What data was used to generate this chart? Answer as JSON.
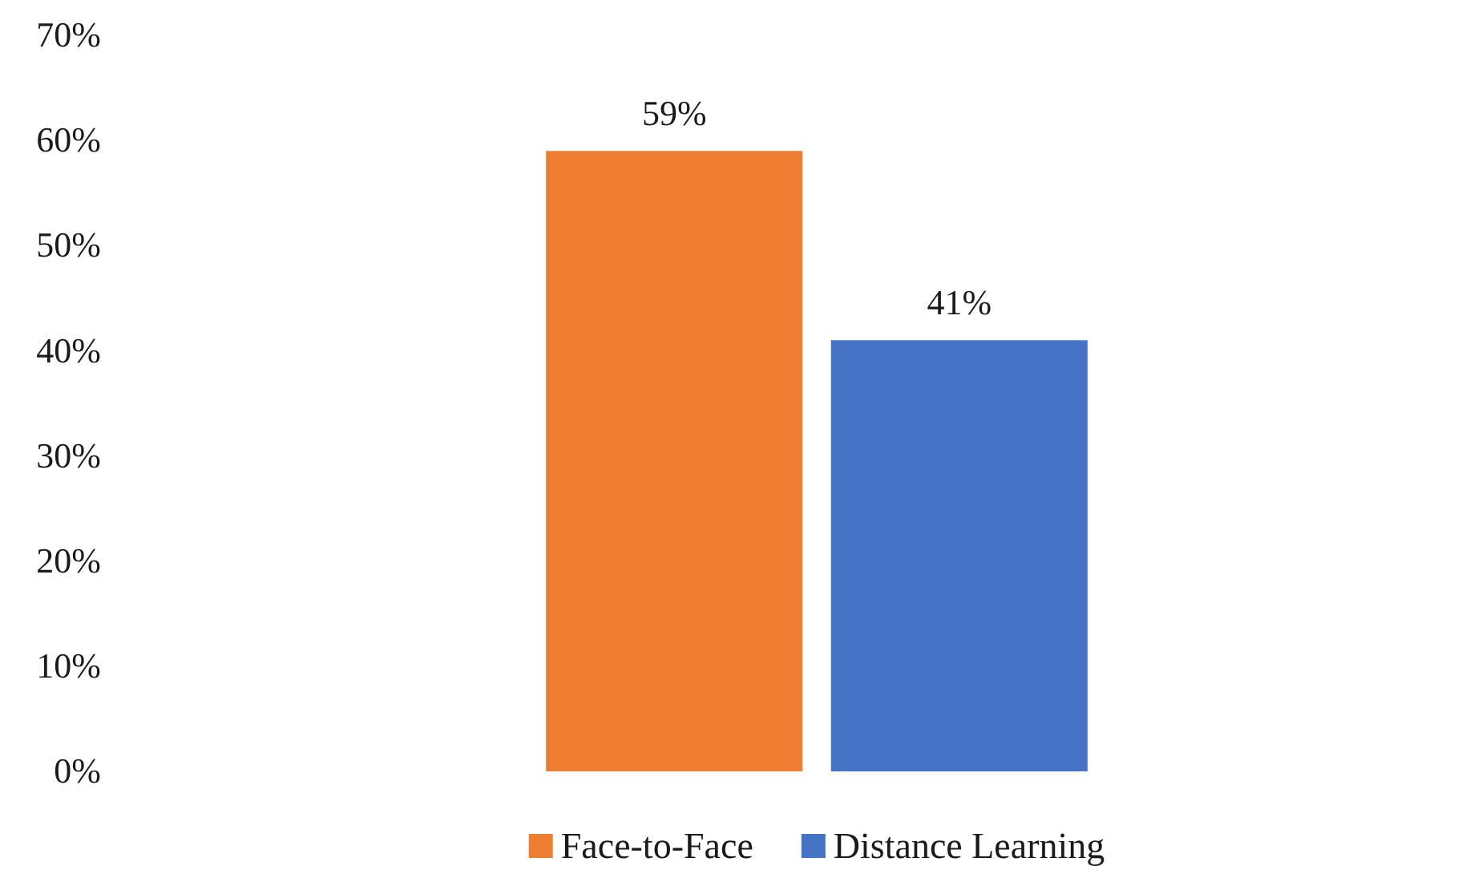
{
  "chart_data": {
    "type": "bar",
    "categories": [
      null
    ],
    "series": [
      {
        "name": "Face-to-Face",
        "color": "#ed7d31",
        "values": [
          59
        ],
        "value_labels": [
          "59%"
        ]
      },
      {
        "name": "Distance Learning",
        "color": "#4472c4",
        "values": [
          41
        ],
        "value_labels": [
          "41%"
        ]
      }
    ],
    "ylim": [
      0,
      70
    ],
    "yticks": [
      {
        "value": 0,
        "label": "0%"
      },
      {
        "value": 10,
        "label": "10%"
      },
      {
        "value": 20,
        "label": "20%"
      },
      {
        "value": 30,
        "label": "30%"
      },
      {
        "value": 40,
        "label": "40%"
      },
      {
        "value": 50,
        "label": "50%"
      },
      {
        "value": 60,
        "label": "60%"
      },
      {
        "value": 70,
        "label": "70%"
      }
    ],
    "legend": "bottom"
  }
}
